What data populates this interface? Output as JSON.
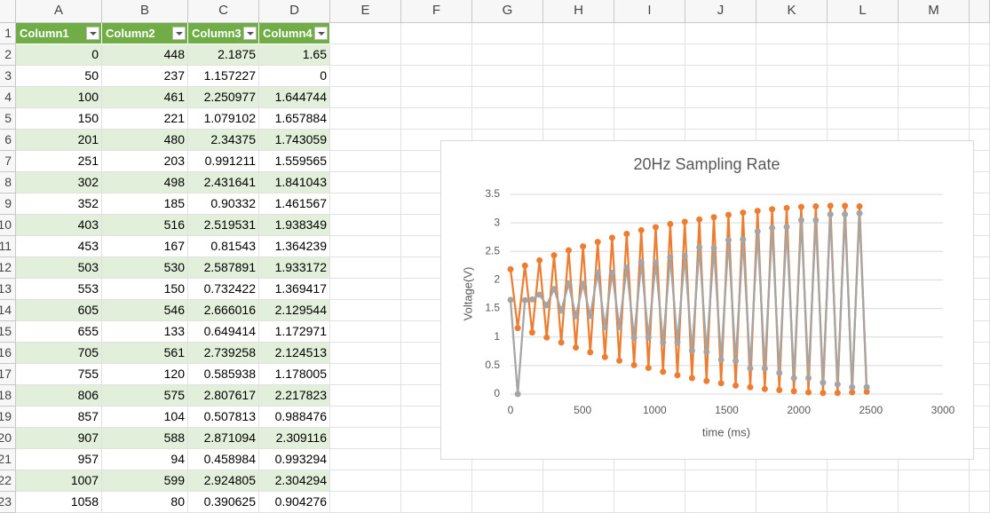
{
  "sheet": {
    "column_headers": [
      "A",
      "B",
      "C",
      "D",
      "E",
      "F",
      "G",
      "H",
      "I",
      "J",
      "K",
      "L",
      "M"
    ],
    "row_headers": [
      "1",
      "2",
      "3",
      "4",
      "5",
      "6",
      "7",
      "8",
      "9",
      "10",
      "11",
      "12",
      "13",
      "14",
      "15",
      "16",
      "17",
      "18",
      "19",
      "20",
      "21",
      "22",
      "23"
    ]
  },
  "table": {
    "header": [
      "Column1",
      "Column2",
      "Column3",
      "Column4"
    ],
    "rows": [
      [
        0,
        448,
        2.1875,
        1.65
      ],
      [
        50,
        237,
        1.157227,
        0
      ],
      [
        100,
        461,
        2.250977,
        1.644744
      ],
      [
        150,
        221,
        1.079102,
        1.657884
      ],
      [
        201,
        480,
        2.34375,
        1.743059
      ],
      [
        251,
        203,
        0.991211,
        1.559565
      ],
      [
        302,
        498,
        2.431641,
        1.841043
      ],
      [
        352,
        185,
        0.90332,
        1.461567
      ],
      [
        403,
        516,
        2.519531,
        1.938349
      ],
      [
        453,
        167,
        0.81543,
        1.364239
      ],
      [
        503,
        530,
        2.587891,
        1.933172
      ],
      [
        553,
        150,
        0.732422,
        1.369417
      ],
      [
        605,
        546,
        2.666016,
        2.129544
      ],
      [
        655,
        133,
        0.649414,
        1.172971
      ],
      [
        705,
        561,
        2.739258,
        2.124513
      ],
      [
        755,
        120,
        0.585938,
        1.178005
      ],
      [
        806,
        575,
        2.807617,
        2.217823
      ],
      [
        857,
        104,
        0.507813,
        0.988476
      ],
      [
        907,
        588,
        2.871094,
        2.309116
      ],
      [
        957,
        94,
        0.458984,
        0.993294
      ],
      [
        1007,
        599,
        2.924805,
        2.304294
      ],
      [
        1058,
        80,
        0.390625,
        0.904276
      ]
    ]
  },
  "chart_data": {
    "type": "scatter",
    "title": "20Hz Sampling Rate",
    "x_label": "time (ms)",
    "y_label": "Voltage(V)",
    "lines": true,
    "markers": true,
    "grid": true,
    "x": [
      0,
      50,
      100,
      150,
      201,
      251,
      302,
      352,
      403,
      453,
      503,
      553,
      605,
      655,
      705,
      755,
      806,
      857,
      907,
      957,
      1007,
      1058,
      1108,
      1158,
      1209,
      1259,
      1310,
      1360,
      1411,
      1461,
      1512,
      1562,
      1613,
      1663,
      1714,
      1764,
      1815,
      1865,
      1916,
      1966,
      2017,
      2067,
      2118,
      2168,
      2219,
      2269,
      2320,
      2370,
      2421,
      2471
    ],
    "series": [
      {
        "color": "#ed7d31",
        "values": [
          2.1875,
          1.157227,
          2.250977,
          1.079102,
          2.34375,
          0.991211,
          2.431641,
          0.90332,
          2.519531,
          0.81543,
          2.587891,
          0.732422,
          2.666016,
          0.649414,
          2.739258,
          0.585938,
          2.807617,
          0.507813,
          2.871094,
          0.458984,
          2.924805,
          0.390625,
          2.98,
          0.33,
          3.02,
          0.28,
          3.06,
          0.23,
          3.1,
          0.19,
          3.14,
          0.15,
          3.18,
          0.12,
          3.21,
          0.09,
          3.24,
          0.07,
          3.26,
          0.05,
          3.28,
          0.03,
          3.29,
          0.02,
          3.3,
          0.02,
          3.3,
          0.03,
          3.29,
          0.04
        ]
      },
      {
        "color": "#a5a5a5",
        "values": [
          1.65,
          0,
          1.644744,
          1.657884,
          1.743059,
          1.559565,
          1.841043,
          1.461567,
          1.938349,
          1.364239,
          1.933172,
          1.369417,
          2.129544,
          1.172971,
          2.124513,
          1.178005,
          2.217823,
          0.988476,
          2.309116,
          0.993294,
          2.304294,
          0.904276,
          2.4,
          0.91,
          2.42,
          0.76,
          2.57,
          0.74,
          2.56,
          0.6,
          2.7,
          0.58,
          2.71,
          0.45,
          2.85,
          0.45,
          2.91,
          0.37,
          2.93,
          0.28,
          3.05,
          0.28,
          3.05,
          0.2,
          3.15,
          0.17,
          3.15,
          0.12,
          3.17,
          0.12
        ]
      }
    ],
    "xlim": [
      0,
      3000
    ],
    "xticks": [
      0,
      500,
      1000,
      1500,
      2000,
      2500,
      3000
    ],
    "ylim": [
      0,
      3.5
    ],
    "yticks": [
      0,
      0.5,
      1,
      1.5,
      2,
      2.5,
      3,
      3.5
    ]
  }
}
